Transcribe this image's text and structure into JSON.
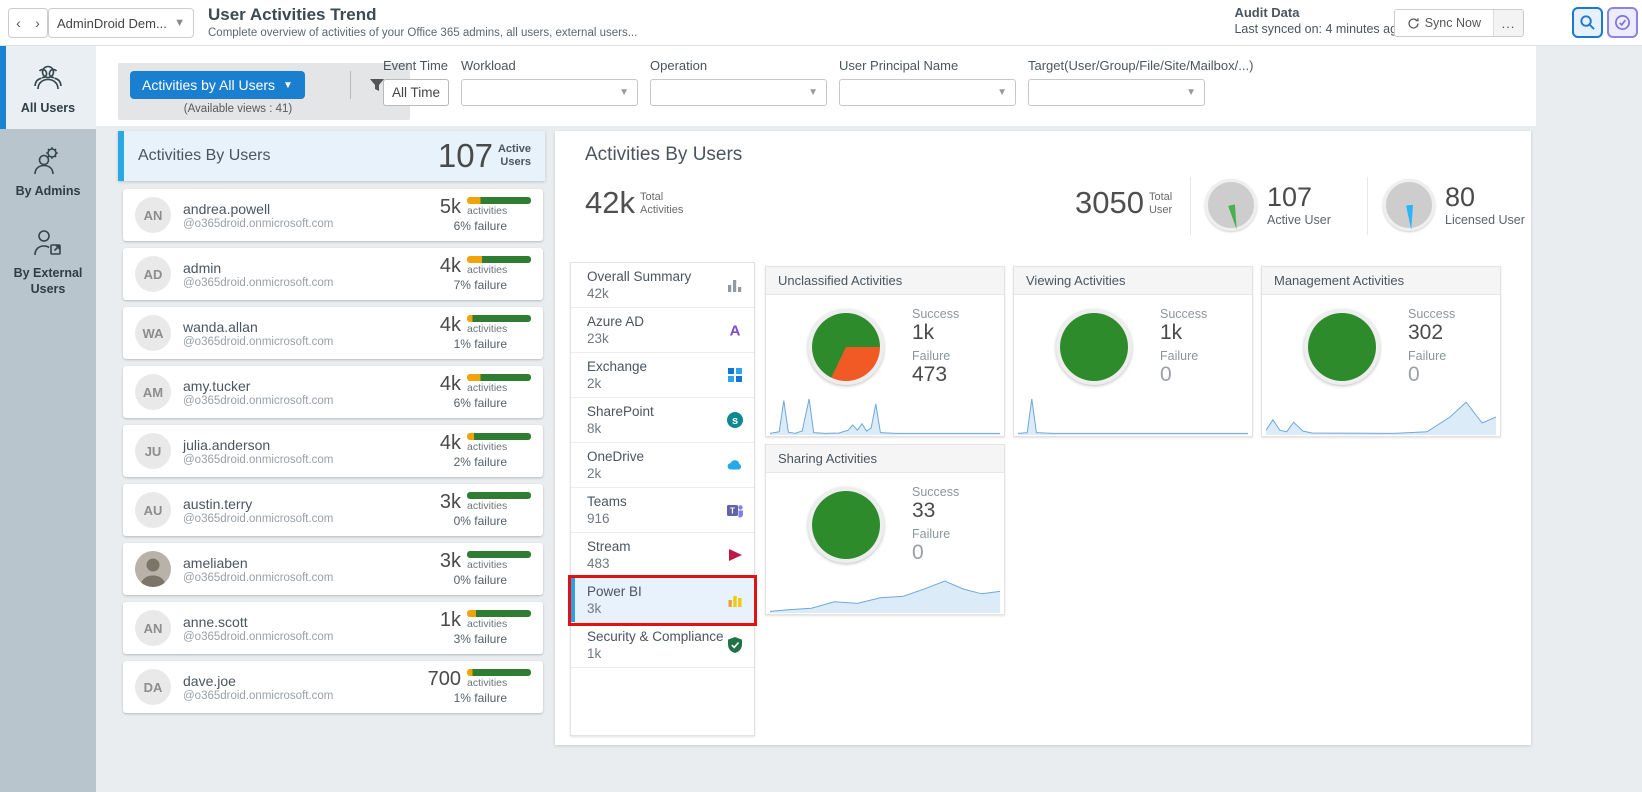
{
  "header": {
    "tenant": "AdminDroid Dem...",
    "title": "User Activities Trend",
    "subtitle": "Complete overview of activities of your Office 365 admins, all users, external users...",
    "audit_label": "Audit Data",
    "last_synced": "Last synced on: 4 minutes ago",
    "sync_label": "Sync Now",
    "more_label": "...",
    "back_arrow": "‹",
    "forward_arrow": "›"
  },
  "sidebar": {
    "items": [
      {
        "label": "All Users",
        "icon": "users-group-icon",
        "active": true
      },
      {
        "label": "By Admins",
        "icon": "admin-gear-icon",
        "active": false
      },
      {
        "label": "By External Users",
        "icon": "external-user-icon",
        "active": false
      }
    ]
  },
  "filters": {
    "views_button": "Activities by All Users",
    "available_views": "(Available views : 41)",
    "fields": [
      {
        "label": "Event Time",
        "value": "All Time",
        "type": "btn"
      },
      {
        "label": "Workload",
        "value": "",
        "type": "select"
      },
      {
        "label": "Operation",
        "value": "",
        "type": "select"
      },
      {
        "label": "User Principal Name",
        "value": "",
        "type": "select"
      },
      {
        "label": "Target(User/Group/File/Site/Mailbox/...)",
        "value": "",
        "type": "select"
      }
    ]
  },
  "users_panel": {
    "title": "Activities By Users",
    "stat_value": "107",
    "stat_label_top": "Active",
    "stat_label_bottom": "Users",
    "unit_label": "activities",
    "items": [
      {
        "initials": "AN",
        "name": "andrea.powell",
        "domain": "@o365droid.onmicrosoft.com",
        "count": "5k",
        "failure": "6% failure",
        "failure_pct": 6,
        "has_photo": false
      },
      {
        "initials": "AD",
        "name": "admin",
        "domain": "@o365droid.onmicrosoft.com",
        "count": "4k",
        "failure": "7% failure",
        "failure_pct": 7,
        "has_photo": false
      },
      {
        "initials": "WA",
        "name": "wanda.allan",
        "domain": "@o365droid.onmicrosoft.com",
        "count": "4k",
        "failure": "1% failure",
        "failure_pct": 1,
        "has_photo": false
      },
      {
        "initials": "AM",
        "name": "amy.tucker",
        "domain": "@o365droid.onmicrosoft.com",
        "count": "4k",
        "failure": "6% failure",
        "failure_pct": 6,
        "has_photo": false
      },
      {
        "initials": "JU",
        "name": "julia.anderson",
        "domain": "@o365droid.onmicrosoft.com",
        "count": "4k",
        "failure": "2% failure",
        "failure_pct": 2,
        "has_photo": false
      },
      {
        "initials": "AU",
        "name": "austin.terry",
        "domain": "@o365droid.onmicrosoft.com",
        "count": "3k",
        "failure": "0% failure",
        "failure_pct": 0,
        "has_photo": false
      },
      {
        "initials": "AM",
        "name": "ameliaben",
        "domain": "@o365droid.onmicrosoft.com",
        "count": "3k",
        "failure": "0% failure",
        "failure_pct": 0,
        "has_photo": true
      },
      {
        "initials": "AN",
        "name": "anne.scott",
        "domain": "@o365droid.onmicrosoft.com",
        "count": "1k",
        "failure": "3% failure",
        "failure_pct": 3,
        "has_photo": false
      },
      {
        "initials": "DA",
        "name": "dave.joe",
        "domain": "@o365droid.onmicrosoft.com",
        "count": "700",
        "failure": "1% failure",
        "failure_pct": 1,
        "has_photo": false
      }
    ]
  },
  "main_panel": {
    "title": "Activities By Users",
    "total_activities": {
      "value": "42k",
      "label_top": "Total",
      "label_bottom": "Activities"
    },
    "total_user": {
      "value": "3050",
      "label_top": "Total",
      "label_bottom": "User"
    },
    "gauges": [
      {
        "value": "107",
        "label": "Active User",
        "needle_color": "#4caf50"
      },
      {
        "value": "80",
        "label": "Licensed User",
        "needle_color": "#29b6f6"
      }
    ]
  },
  "workloads": {
    "items": [
      {
        "name": "Overall Summary",
        "count": "42k",
        "icon": "bar-chart-gray-icon",
        "selected": false
      },
      {
        "name": "Azure AD",
        "count": "23k",
        "icon": "azure-ad-icon",
        "selected": false
      },
      {
        "name": "Exchange",
        "count": "2k",
        "icon": "exchange-icon",
        "selected": false
      },
      {
        "name": "SharePoint",
        "count": "8k",
        "icon": "sharepoint-icon",
        "selected": false
      },
      {
        "name": "OneDrive",
        "count": "2k",
        "icon": "onedrive-icon",
        "selected": false
      },
      {
        "name": "Teams",
        "count": "916",
        "icon": "teams-icon",
        "selected": false
      },
      {
        "name": "Stream",
        "count": "483",
        "icon": "stream-icon",
        "selected": false
      },
      {
        "name": "Power BI",
        "count": "3k",
        "icon": "powerbi-icon",
        "selected": true
      },
      {
        "name": "Security & Compliance",
        "count": "1k",
        "icon": "security-shield-icon",
        "selected": false
      }
    ]
  },
  "panels": {
    "success_label": "Success",
    "failure_label": "Failure",
    "items": [
      {
        "title": "Unclassified Activities",
        "success": "1k",
        "success_num": 1000,
        "failure": "473",
        "failure_num": 473,
        "spark": [
          [
            0,
            96
          ],
          [
            4,
            92
          ],
          [
            6,
            14
          ],
          [
            8,
            93
          ],
          [
            11,
            96
          ],
          [
            14,
            90
          ],
          [
            17,
            10
          ],
          [
            19,
            94
          ],
          [
            24,
            96
          ],
          [
            30,
            95
          ],
          [
            34,
            88
          ],
          [
            36,
            75
          ],
          [
            38,
            88
          ],
          [
            40,
            72
          ],
          [
            42,
            90
          ],
          [
            44,
            82
          ],
          [
            46,
            22
          ],
          [
            48,
            94
          ],
          [
            55,
            96
          ],
          [
            100,
            96
          ]
        ]
      },
      {
        "title": "Viewing Activities",
        "success": "1k",
        "success_num": 1000,
        "failure": "0",
        "failure_num": 0,
        "spark": [
          [
            0,
            96
          ],
          [
            4,
            94
          ],
          [
            6,
            10
          ],
          [
            8,
            94
          ],
          [
            15,
            96
          ],
          [
            100,
            96
          ]
        ]
      },
      {
        "title": "Management Activities",
        "success": "302",
        "success_num": 302,
        "failure": "0",
        "failure_num": 0,
        "spark": [
          [
            0,
            88
          ],
          [
            3,
            62
          ],
          [
            6,
            88
          ],
          [
            9,
            92
          ],
          [
            12,
            68
          ],
          [
            16,
            90
          ],
          [
            20,
            95
          ],
          [
            55,
            96
          ],
          [
            70,
            92
          ],
          [
            80,
            55
          ],
          [
            87,
            18
          ],
          [
            94,
            70
          ],
          [
            100,
            55
          ]
        ]
      },
      {
        "title": "Sharing Activities",
        "success": "33",
        "success_num": 33,
        "failure": "0",
        "failure_num": 0,
        "spark": [
          [
            0,
            96
          ],
          [
            8,
            92
          ],
          [
            18,
            88
          ],
          [
            28,
            72
          ],
          [
            38,
            76
          ],
          [
            48,
            62
          ],
          [
            58,
            58
          ],
          [
            68,
            38
          ],
          [
            76,
            20
          ],
          [
            84,
            40
          ],
          [
            92,
            52
          ],
          [
            100,
            46
          ]
        ]
      }
    ]
  },
  "chart_data": [
    {
      "type": "pie",
      "title": "Unclassified Activities",
      "labels": [
        "Success",
        "Failure"
      ],
      "values": [
        1000,
        473
      ]
    },
    {
      "type": "pie",
      "title": "Viewing Activities",
      "labels": [
        "Success",
        "Failure"
      ],
      "values": [
        1000,
        0
      ]
    },
    {
      "type": "pie",
      "title": "Management Activities",
      "labels": [
        "Success",
        "Failure"
      ],
      "values": [
        302,
        0
      ]
    },
    {
      "type": "pie",
      "title": "Sharing Activities",
      "labels": [
        "Success",
        "Failure"
      ],
      "values": [
        33,
        0
      ]
    }
  ],
  "colors": {
    "accent_blue": "#1b7fd0",
    "panel_blue_border": "#29a9e1",
    "pie_green": "#2e8b2c",
    "pie_orange": "#f15a24",
    "bar_green": "#2e7d32",
    "bar_orange": "#f0a30a",
    "highlight_red": "#e01212",
    "spark_stroke": "#6fa8dc",
    "spark_fill": "#dcebf8"
  }
}
